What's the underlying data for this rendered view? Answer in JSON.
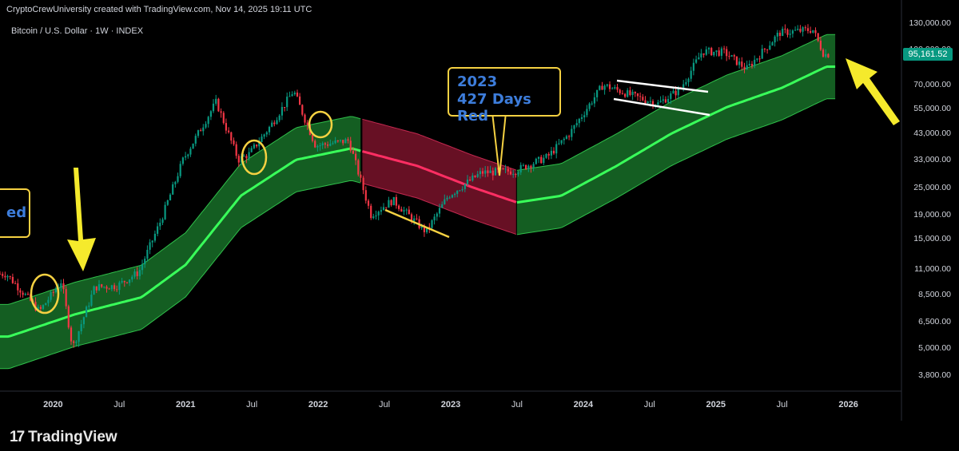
{
  "header": {
    "attribution": "CryptoCrewUniversity created with TradingView.com, Nov 14, 2025 19:11 UTC",
    "symbol": "Bitcoin / U.S. Dollar · 1W · INDEX"
  },
  "footer": {
    "logo_mark": "17",
    "logo_text": "TradingView"
  },
  "annotation": {
    "line1": "2023",
    "line2": "427 Days Red",
    "left_fragment": "ed"
  },
  "current_price": "95,161.52",
  "colors": {
    "up": "#089981",
    "down": "#f23645",
    "band_green": "#1b7d2e",
    "band_red": "#8a1530",
    "line_green": "#39ff5a",
    "line_red": "#ff2e63",
    "annotation": "#f5d142"
  },
  "chart_data": {
    "type": "candlestick",
    "title": "",
    "scale": "log",
    "y_ticks": [
      "130,000.00",
      "100,000.00",
      "70,000.00",
      "55,000.00",
      "43,000.00",
      "33,000.00",
      "25,000.00",
      "19,000.00",
      "15,000.00",
      "11,000.00",
      "8,500.00",
      "6,500.00",
      "5,000.00",
      "3,800.00"
    ],
    "x_ticks": [
      {
        "label": "2020",
        "year": true
      },
      {
        "label": "Jul",
        "year": false
      },
      {
        "label": "2021",
        "year": true
      },
      {
        "label": "Jul",
        "year": false
      },
      {
        "label": "2022",
        "year": true
      },
      {
        "label": "Jul",
        "year": false
      },
      {
        "label": "2023",
        "year": true
      },
      {
        "label": "Jul",
        "year": false
      },
      {
        "label": "2024",
        "year": true
      },
      {
        "label": "Jul",
        "year": false
      },
      {
        "label": "2025",
        "year": true
      },
      {
        "label": "Jul",
        "year": false
      },
      {
        "label": "2026",
        "year": true
      }
    ],
    "price_path": [
      [
        "2019-09",
        10500
      ],
      [
        "2019-11",
        8200
      ],
      [
        "2019-12",
        7200
      ],
      [
        "2020-02",
        9800
      ],
      [
        "2020-03",
        5000
      ],
      [
        "2020-05",
        9200
      ],
      [
        "2020-07",
        9300
      ],
      [
        "2020-09",
        10700
      ],
      [
        "2020-11",
        18000
      ],
      [
        "2021-01",
        33000
      ],
      [
        "2021-04",
        59000
      ],
      [
        "2021-06",
        33000
      ],
      [
        "2021-07",
        35000
      ],
      [
        "2021-09",
        47000
      ],
      [
        "2021-11",
        66000
      ],
      [
        "2022-01",
        38000
      ],
      [
        "2022-04",
        40000
      ],
      [
        "2022-06",
        19000
      ],
      [
        "2022-08",
        22000
      ],
      [
        "2022-11",
        16000
      ],
      [
        "2023-01",
        23000
      ],
      [
        "2023-04",
        29000
      ],
      [
        "2023-07",
        29500
      ],
      [
        "2023-10",
        34000
      ],
      [
        "2023-12",
        43000
      ],
      [
        "2024-03",
        70000
      ],
      [
        "2024-06",
        62000
      ],
      [
        "2024-08",
        58000
      ],
      [
        "2024-10",
        67000
      ],
      [
        "2024-12",
        98000
      ],
      [
        "2025-02",
        97000
      ],
      [
        "2025-04",
        82000
      ],
      [
        "2025-07",
        118000
      ],
      [
        "2025-10",
        122000
      ],
      [
        "2025-11",
        95161
      ]
    ],
    "band": {
      "center": [
        [
          "2019-09",
          5600
        ],
        [
          "2020-03",
          7000
        ],
        [
          "2020-09",
          8300
        ],
        [
          "2021-01",
          11500
        ],
        [
          "2021-06",
          23000
        ],
        [
          "2021-11",
          33000
        ],
        [
          "2022-04",
          37000
        ],
        [
          "2022-10",
          31000
        ],
        [
          "2023-03",
          25000
        ],
        [
          "2023-07",
          21500
        ],
        [
          "2023-11",
          23000
        ],
        [
          "2024-04",
          31000
        ],
        [
          "2024-09",
          43000
        ],
        [
          "2025-02",
          56000
        ],
        [
          "2025-07",
          68000
        ],
        [
          "2025-11",
          84000
        ]
      ],
      "red_segment": [
        "2022-05",
        "2023-07"
      ]
    },
    "annotations": [
      "2023",
      "427 Days Red"
    ]
  }
}
